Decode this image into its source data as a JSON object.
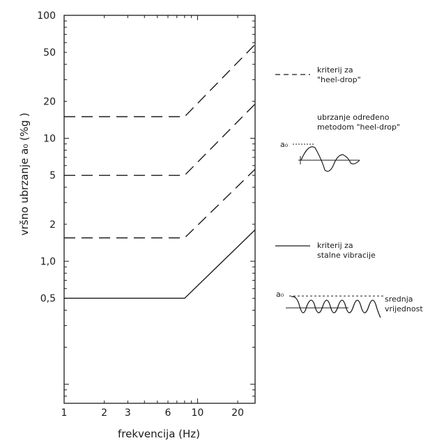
{
  "chart_data": {
    "type": "line",
    "xlabel": "frekvencija (Hz)",
    "ylabel": "vršno ubrzanje a₀ (%g )",
    "x_scale": "log",
    "y_scale": "log",
    "xlim": [
      1,
      27
    ],
    "ylim": [
      0.07,
      100
    ],
    "x_ticks": [
      1,
      2,
      3,
      6,
      10,
      20
    ],
    "x_tick_labels": [
      "1",
      "2",
      "3",
      "6",
      "10",
      "20"
    ],
    "y_ticks": [
      100,
      50,
      20,
      10,
      5,
      2,
      1,
      0.5
    ],
    "y_tick_labels": [
      "100",
      "50",
      "20",
      "10",
      "5",
      "2",
      "1,0",
      "0,5"
    ],
    "series": [
      {
        "style": "dashed",
        "x": [
          1,
          8,
          27
        ],
        "y": [
          15,
          15,
          58
        ]
      },
      {
        "style": "dashed",
        "x": [
          1,
          8,
          27
        ],
        "y": [
          5,
          5,
          19
        ]
      },
      {
        "style": "dashed",
        "x": [
          1,
          8,
          27
        ],
        "y": [
          1.55,
          1.55,
          5.6
        ]
      },
      {
        "style": "solid",
        "x": [
          1,
          8,
          27
        ],
        "y": [
          0.5,
          0.5,
          1.8
        ]
      }
    ],
    "legend": {
      "placement": "right",
      "entries": [
        {
          "style": "dashed",
          "label_lines": [
            "kriterij za",
            "\"heel-drop\""
          ]
        },
        {
          "style": "solid",
          "label_lines": [
            "kriterij za",
            "stalne vibracije"
          ]
        }
      ]
    },
    "annotations": {
      "heel_drop": {
        "text_lines": [
          "ubrzanje određeno",
          "metodom \"heel-drop\""
        ],
        "symbol": "a₀"
      },
      "steady": {
        "symbol": "a₀",
        "text_lines": [
          "srednja",
          "vrijednost"
        ]
      }
    }
  }
}
